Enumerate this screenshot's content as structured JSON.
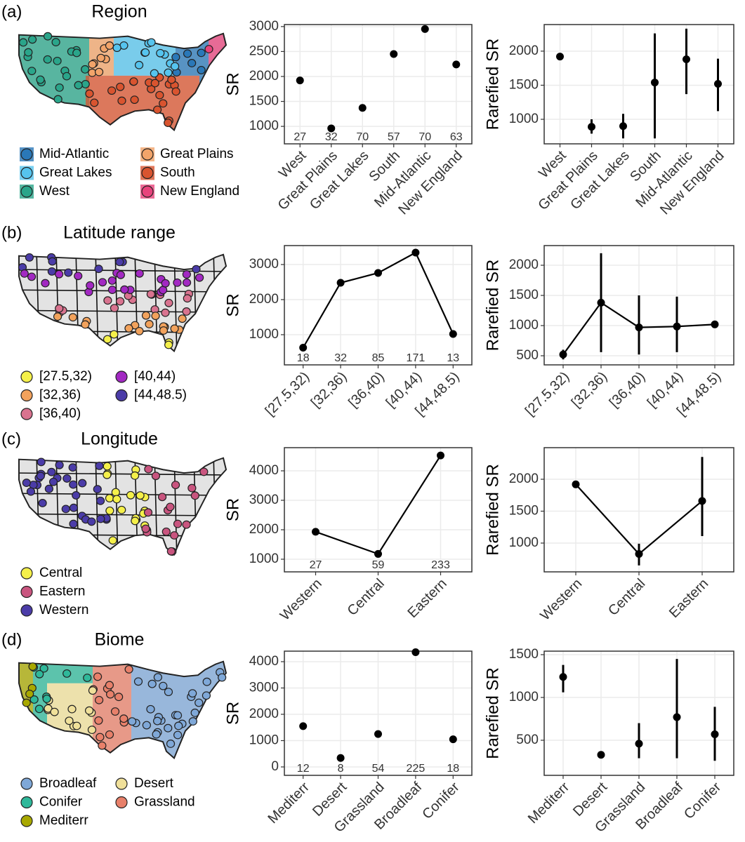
{
  "panels": [
    {
      "label": "(a)",
      "title": "Region",
      "legend": [
        {
          "name": "Mid-Atlantic",
          "color": "#2a78b8"
        },
        {
          "name": "Great Lakes",
          "color": "#56c4ee"
        },
        {
          "name": "West",
          "color": "#2aa58a"
        },
        {
          "name": "Great Plains",
          "color": "#f2a46a"
        },
        {
          "name": "South",
          "color": "#d9542f"
        },
        {
          "name": "New England",
          "color": "#e8437c"
        }
      ]
    },
    {
      "label": "(b)",
      "title": "Latitude range",
      "legend": [
        {
          "name": "[27.5,32)",
          "color": "#f5f04a"
        },
        {
          "name": "[32,36)",
          "color": "#f2a25c"
        },
        {
          "name": "[36,40)",
          "color": "#d9738f"
        },
        {
          "name": "[40,44)",
          "color": "#a229c2"
        },
        {
          "name": "[44,48.5)",
          "color": "#4b3ca8"
        }
      ]
    },
    {
      "label": "(c)",
      "title": "Longitude",
      "legend": [
        {
          "name": "Central",
          "color": "#f5f04a"
        },
        {
          "name": "Eastern",
          "color": "#c9557f"
        },
        {
          "name": "Western",
          "color": "#4b3ca8"
        }
      ]
    },
    {
      "label": "(d)",
      "title": "Biome",
      "legend": [
        {
          "name": "Broadleaf",
          "color": "#7fa8d8"
        },
        {
          "name": "Conifer",
          "color": "#2fb89a"
        },
        {
          "name": "Mediterr",
          "color": "#a8a800"
        },
        {
          "name": "Desert",
          "color": "#f0e09a"
        },
        {
          "name": "Grassland",
          "color": "#e8806a"
        }
      ]
    }
  ],
  "chart_data": [
    {
      "type": "point",
      "ylabel": "SR",
      "categories": [
        "West",
        "Great Plains",
        "Great Lakes",
        "South",
        "Mid-Atlantic",
        "New England"
      ],
      "values": [
        1920,
        960,
        1370,
        2450,
        2950,
        2240
      ],
      "n": [
        27,
        32,
        70,
        57,
        70,
        63
      ],
      "ylim": [
        650,
        3040
      ],
      "yticks": [
        1000,
        1500,
        2000,
        2500,
        3000
      ],
      "grid": true,
      "color": "#000000"
    },
    {
      "type": "point",
      "ylabel": "Rarefied SR",
      "categories": [
        "West",
        "Great Plains",
        "Great Lakes",
        "South",
        "Mid-Atlantic",
        "New England"
      ],
      "values": [
        1920,
        890,
        900,
        1540,
        1880,
        1520
      ],
      "lower": [
        null,
        790,
        720,
        720,
        1370,
        1120
      ],
      "upper": [
        null,
        1000,
        1080,
        2260,
        2330,
        1890
      ],
      "ylim": [
        640,
        2390
      ],
      "yticks": [
        1000,
        1500,
        2000
      ],
      "grid": true,
      "color": "#000000"
    },
    {
      "type": "line",
      "ylabel": "SR",
      "categories": [
        "[27.5,32)",
        "[32,36)",
        "[36,40)",
        "[40,44)",
        "[44,48.5)"
      ],
      "values": [
        630,
        2480,
        2760,
        3340,
        1020
      ],
      "n": [
        18,
        32,
        85,
        171,
        13
      ],
      "ylim": [
        140,
        3540
      ],
      "yticks": [
        1000,
        2000,
        3000
      ],
      "grid": true,
      "color": "#000000"
    },
    {
      "type": "line",
      "ylabel": "Rarefied SR",
      "categories": [
        "[27.5,32)",
        "[32,36)",
        "[36,40)",
        "[40,44)",
        "[44,48.5)"
      ],
      "values": [
        520,
        1380,
        970,
        985,
        1020
      ],
      "lower": [
        440,
        560,
        520,
        560,
        null
      ],
      "upper": [
        600,
        2200,
        1500,
        1480,
        null
      ],
      "ylim": [
        349,
        2326
      ],
      "yticks": [
        500,
        1000,
        1500,
        2000
      ],
      "grid": true,
      "color": "#000000"
    },
    {
      "type": "line",
      "ylabel": "SR",
      "categories": [
        "Western",
        "Central",
        "Eastern"
      ],
      "values": [
        1930,
        1180,
        4520
      ],
      "n": [
        27,
        59,
        233
      ],
      "ylim": [
        571,
        4786
      ],
      "yticks": [
        1000,
        2000,
        3000,
        4000
      ],
      "grid": true,
      "color": "#000000"
    },
    {
      "type": "line",
      "ylabel": "Rarefied SR",
      "categories": [
        "Western",
        "Central",
        "Eastern"
      ],
      "values": [
        1920,
        830,
        1660
      ],
      "lower": [
        null,
        650,
        1110
      ],
      "upper": [
        null,
        990,
        2350
      ],
      "ylim": [
        549,
        2495
      ],
      "yticks": [
        1000,
        1500,
        2000
      ],
      "grid": true,
      "color": "#000000"
    },
    {
      "type": "point",
      "ylabel": "SR",
      "categories": [
        "Mediterr",
        "Desert",
        "Grassland",
        "Broadleaf",
        "Conifer"
      ],
      "values": [
        1550,
        340,
        1250,
        4360,
        1050
      ],
      "n": [
        12,
        8,
        54,
        225,
        18
      ],
      "ylim": [
        -320,
        4400
      ],
      "yticks": [
        0,
        1000,
        2000,
        3000,
        4000
      ],
      "grid": true,
      "color": "#000000"
    },
    {
      "type": "point",
      "ylabel": "Rarefied SR",
      "categories": [
        "Mediterr",
        "Desert",
        "Grassland",
        "Broadleaf",
        "Conifer"
      ],
      "values": [
        1240,
        330,
        460,
        770,
        570
      ],
      "lower": [
        1060,
        null,
        290,
        290,
        260
      ],
      "upper": [
        1380,
        null,
        700,
        1450,
        890
      ],
      "ylim": [
        90,
        1541
      ],
      "yticks": [
        500,
        1000,
        1500
      ],
      "grid": true,
      "color": "#000000"
    }
  ]
}
